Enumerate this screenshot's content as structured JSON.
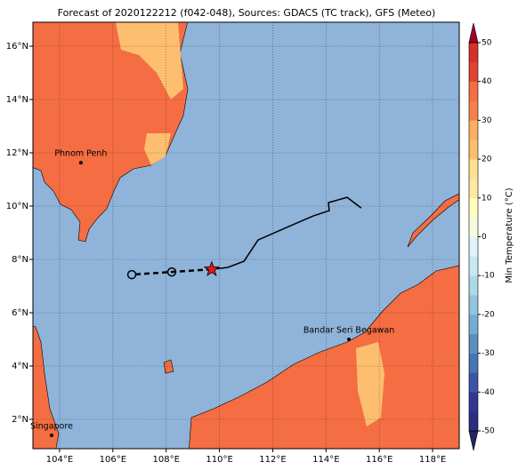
{
  "title": "Forecast of 2020122212 (f042-048), Sources: GDACS (TC track), GFS (Meteo)",
  "map": {
    "xlim": [
      103,
      119
    ],
    "ylim": [
      0.9,
      16.9
    ],
    "grid": true,
    "xticks": [
      {
        "value": 104,
        "label": "104°E"
      },
      {
        "value": 106,
        "label": "106°E"
      },
      {
        "value": 108,
        "label": "108°E"
      },
      {
        "value": 110,
        "label": "110°E"
      },
      {
        "value": 112,
        "label": "112°E"
      },
      {
        "value": 114,
        "label": "114°E"
      },
      {
        "value": 116,
        "label": "116°E"
      },
      {
        "value": 118,
        "label": "118°E"
      }
    ],
    "yticks": [
      {
        "value": 2,
        "label": "2°N"
      },
      {
        "value": 4,
        "label": "4°N"
      },
      {
        "value": 6,
        "label": "6°N"
      },
      {
        "value": 8,
        "label": "8°N"
      },
      {
        "value": 10,
        "label": "10°N"
      },
      {
        "value": 12,
        "label": "12°N"
      },
      {
        "value": 14,
        "label": "14°N"
      },
      {
        "value": 16,
        "label": "16°N"
      }
    ],
    "ocean_color": "#8fb3d9"
  },
  "cities": [
    {
      "name": "Phnom Penh",
      "lon": 104.8,
      "lat": 11.63
    },
    {
      "name": "Bandar Seri Begawan",
      "lon": 114.86,
      "lat": 5.0
    },
    {
      "name": "Singapore",
      "lon": 103.7,
      "lat": 1.4
    }
  ],
  "track": {
    "observed": {
      "lon": [
        115.32,
        114.79,
        114.09,
        114.12,
        113.52,
        112.45,
        111.45,
        110.92,
        110.31,
        109.71
      ],
      "lat": [
        9.93,
        10.33,
        10.13,
        9.83,
        9.63,
        9.17,
        8.73,
        7.93,
        7.7,
        7.63
      ],
      "color": "#000000"
    },
    "forecast": {
      "lon": [
        109.71,
        108.21,
        106.71
      ],
      "lat": [
        7.63,
        7.53,
        7.43
      ],
      "color": "#000000",
      "star_color": "#e41a1c"
    }
  },
  "colorbar": {
    "label": "Min Temperature (°C)",
    "lim": [
      -50,
      50
    ],
    "ticks": [
      -50,
      -40,
      -30,
      -20,
      -10,
      0,
      10,
      20,
      30,
      40,
      50
    ],
    "colors": [
      "#2c2d84",
      "#313695",
      "#3a55a5",
      "#4575b4",
      "#5b8fc2",
      "#74add1",
      "#92c4de",
      "#abd9e9",
      "#c8e8f1",
      "#e0f3f8",
      "#f7fcdc",
      "#ffffbf",
      "#fee8a0",
      "#fee090",
      "#fdbe70",
      "#fdae61",
      "#f67f4a",
      "#f46d43",
      "#e24430",
      "#d73027"
    ],
    "under_color": "#232563",
    "over_color": "#a50026"
  }
}
